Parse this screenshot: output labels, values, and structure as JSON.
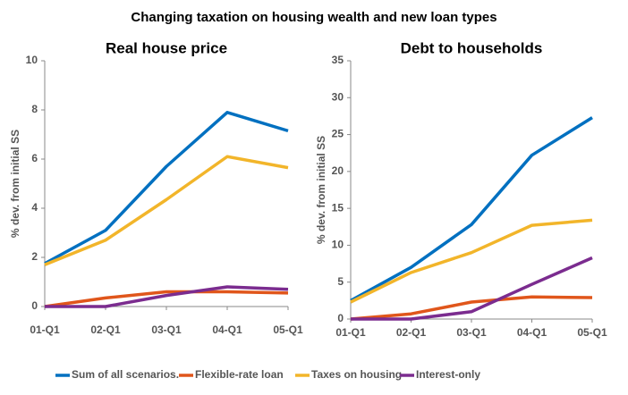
{
  "title": "Changing taxation on housing wealth and new loan types",
  "chart_data": [
    {
      "type": "line",
      "title": "Real house price",
      "y_label": "% dev. from initial SS",
      "categories": [
        "01-Q1",
        "02-Q1",
        "03-Q1",
        "04-Q1",
        "05-Q1"
      ],
      "ylim": [
        0,
        10
      ],
      "yticks": [
        0,
        2,
        4,
        6,
        8,
        10
      ],
      "series": [
        {
          "name": "Sum of all scenarios.",
          "color": "#0070c0",
          "values": [
            1.75,
            3.1,
            5.7,
            7.9,
            7.15
          ]
        },
        {
          "name": "Flexible-rate loan",
          "color": "#e0561b",
          "values": [
            0,
            0.35,
            0.6,
            0.6,
            0.55
          ]
        },
        {
          "name": "Taxes on housing",
          "color": "#f2b52a",
          "values": [
            1.7,
            2.7,
            4.35,
            6.1,
            5.65
          ]
        },
        {
          "name": "Interest-only",
          "color": "#7b2c8f",
          "values": [
            0,
            0,
            0.45,
            0.8,
            0.7
          ]
        }
      ]
    },
    {
      "type": "line",
      "title": "Debt to households",
      "y_label": "% dev. from initial SS",
      "categories": [
        "01-Q1",
        "02-Q1",
        "03-Q1",
        "04-Q1",
        "05-Q1"
      ],
      "ylim": [
        0,
        35
      ],
      "yticks": [
        0,
        5,
        10,
        15,
        20,
        25,
        30,
        35
      ],
      "series": [
        {
          "name": "Sum of all scenarios.",
          "color": "#0070c0",
          "values": [
            2.5,
            7,
            12.8,
            22.2,
            27.3
          ]
        },
        {
          "name": "Flexible-rate loan",
          "color": "#e0561b",
          "values": [
            0,
            0.7,
            2.3,
            3.0,
            2.9
          ]
        },
        {
          "name": "Taxes on housing",
          "color": "#f2b52a",
          "values": [
            2.3,
            6.3,
            9,
            12.7,
            13.4
          ]
        },
        {
          "name": "Interest-only",
          "color": "#7b2c8f",
          "values": [
            0,
            0,
            1,
            4.7,
            8.3
          ]
        }
      ]
    }
  ]
}
